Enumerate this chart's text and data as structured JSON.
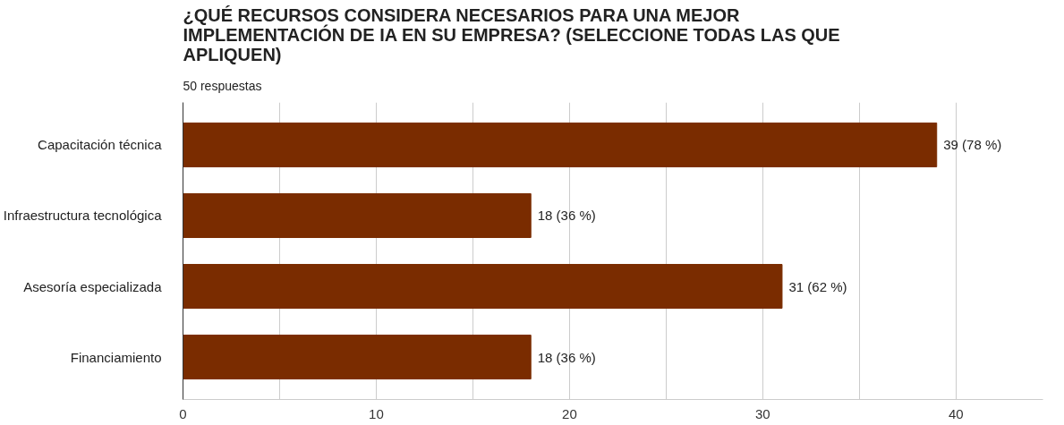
{
  "chart_data": {
    "type": "bar",
    "orientation": "horizontal",
    "title": "¿QUÉ RECURSOS CONSIDERA NECESARIOS PARA UNA MEJOR IMPLEMENTACIÓN DE IA EN SU EMPRESA? (SELECCIONE TODAS LAS QUE APLIQUEN)",
    "subtitle": "50 respuestas",
    "categories": [
      "Capacitación técnica",
      "Infraestructura tecnológica",
      "Asesoría especializada",
      "Financiamiento"
    ],
    "values": [
      39,
      18,
      31,
      18
    ],
    "color": "#7a2c00",
    "value_labels": [
      "39 (78 %)",
      "18 (36 %)",
      "31 (62 %)",
      "18 (36 %)"
    ],
    "xlim": [
      0,
      44.5
    ],
    "xticks": [
      0,
      {
        "value": 5,
        "label": null
      },
      10,
      {
        "value": 15,
        "label": null
      },
      20,
      {
        "value": 25,
        "label": null
      },
      30,
      {
        "value": 35,
        "label": null
      },
      40
    ],
    "grid": "x"
  }
}
